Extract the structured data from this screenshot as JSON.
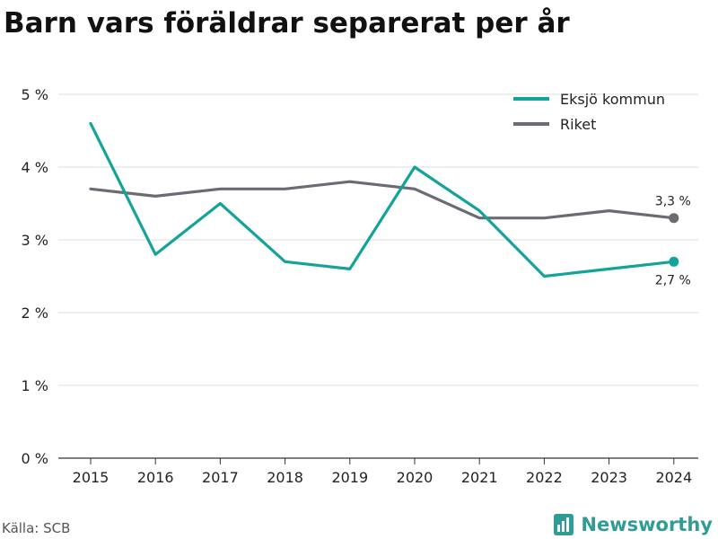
{
  "header": {
    "title": "Barn vars föräldrar separerat per år"
  },
  "footer": {
    "source": "Källa: SCB",
    "brand": "Newsworthy"
  },
  "colors": {
    "eksjo": "#14a39a",
    "riket": "#6b6b73",
    "grid": "#dedede",
    "axis": "#333333",
    "brand": "#2f9c96"
  },
  "chart_data": {
    "type": "line",
    "title": "Barn vars föräldrar separerat per år",
    "x": [
      "2015",
      "2016",
      "2017",
      "2018",
      "2019",
      "2020",
      "2021",
      "2022",
      "2023",
      "2024"
    ],
    "ylim": [
      0,
      5
    ],
    "yticks": [
      0,
      1,
      2,
      3,
      4,
      5
    ],
    "ytick_labels": [
      "0 %",
      "1 %",
      "2 %",
      "3 %",
      "4 %",
      "5 %"
    ],
    "y_unit": "%",
    "grid": true,
    "legend_position": "top-right",
    "series": [
      {
        "name": "Eksjö kommun",
        "color": "#14a39a",
        "values": [
          4.6,
          2.8,
          3.5,
          2.7,
          2.6,
          4.0,
          3.4,
          2.5,
          2.6,
          2.7
        ],
        "end_label": "2,7 %",
        "end_label_position": "below"
      },
      {
        "name": "Riket",
        "color": "#6b6b73",
        "values": [
          3.7,
          3.6,
          3.7,
          3.7,
          3.8,
          3.7,
          3.3,
          3.3,
          3.4,
          3.3
        ],
        "end_label": "3,3 %",
        "end_label_position": "above"
      }
    ]
  }
}
